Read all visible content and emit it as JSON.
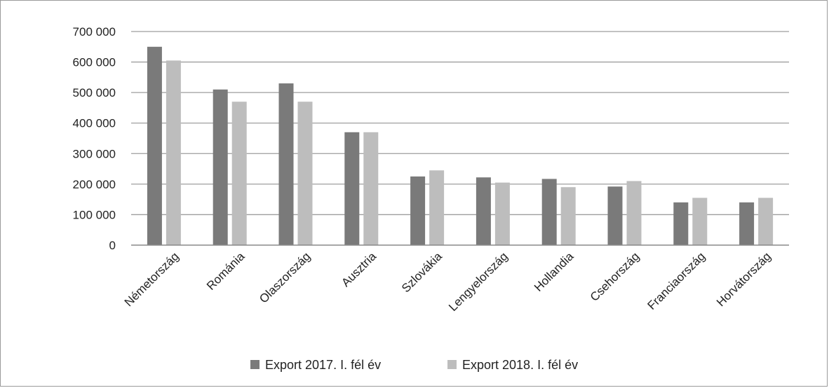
{
  "chart_data": {
    "type": "bar",
    "categories": [
      "Németország",
      "Románia",
      "Olaszország",
      "Ausztria",
      "Szlovákia",
      "Lengyelország",
      "Hollandia",
      "Csehország",
      "Franciaország",
      "Horvátország"
    ],
    "series": [
      {
        "name": "Export 2017. I. fél év",
        "color": "#7a7a7a",
        "values": [
          650000,
          510000,
          530000,
          370000,
          225000,
          222000,
          217000,
          192000,
          140000,
          140000
        ]
      },
      {
        "name": "Export 2018. I. fél év",
        "color": "#bdbdbd",
        "values": [
          605000,
          470000,
          470000,
          370000,
          245000,
          205000,
          190000,
          210000,
          155000,
          155000
        ]
      }
    ],
    "ylim": [
      0,
      700000
    ],
    "yticks": [
      0,
      100000,
      200000,
      300000,
      400000,
      500000,
      600000,
      700000
    ],
    "ytick_labels": [
      "0",
      "100 000",
      "200 000",
      "300 000",
      "400 000",
      "500 000",
      "600 000",
      "700 000"
    ],
    "grid": true,
    "legend_position": "bottom",
    "gridline_color": "#9e9e9e"
  }
}
